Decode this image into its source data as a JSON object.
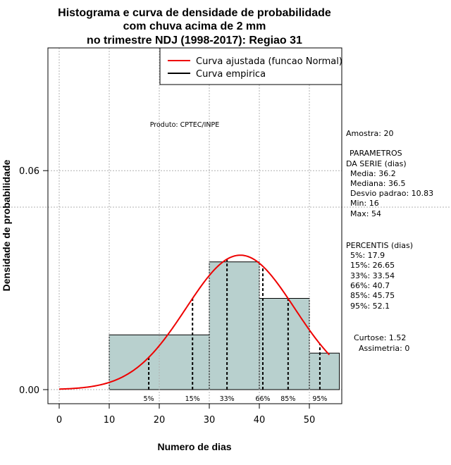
{
  "title": {
    "line1": "Histograma e curva de densidade de probabilidade",
    "line2": "com chuva acima de 2 mm",
    "line3": "no trimestre NDJ (1998-2017): Regiao 31"
  },
  "product_label": "Produto: CPTEC/INPE",
  "legend": {
    "fit_label": "Curva ajustada (funcao Normal)",
    "empirical_label": "Curva empirica"
  },
  "stats": {
    "amostra": "Amostra: 20",
    "param_header1": "PARAMETROS",
    "param_header2": "DA SERIE (dias)",
    "media": "Media: 36.2",
    "mediana": "Mediana: 36.5",
    "desvio": "Desvio padrao: 10.83",
    "min": "Min: 16",
    "max": "Max: 54",
    "perc_header": "PERCENTIS (dias)",
    "p5": "5%: 17.9",
    "p15": "15%: 26.65",
    "p33": "33%: 33.54",
    "p66": "66%: 40.7",
    "p85": "85%: 45.75",
    "p95": "95%: 52.1",
    "curtose": "Curtose: 1.52",
    "assimetria": "Assimetria: 0"
  },
  "chart_data": {
    "type": "bar",
    "title": "Histograma e curva de densidade de probabilidade com chuva acima de 2 mm no trimestre NDJ (1998-2017): Regiao 31",
    "xlabel": "Numero de dias",
    "ylabel": "Densidade de probabilidade",
    "xlim": [
      -2.5,
      56.5
    ],
    "ylim": [
      -0.004,
      0.09
    ],
    "x_ticks": [
      0,
      10,
      20,
      30,
      40,
      50
    ],
    "y_ticks": [
      0.0,
      0.06
    ],
    "y_tick_labels": [
      "0.00",
      "0.06"
    ],
    "grid": true,
    "extra_hgrid": 0.05,
    "bins": [
      {
        "start": 10,
        "end": 30,
        "density": 0.015
      },
      {
        "start": 30,
        "end": 40,
        "density": 0.035
      },
      {
        "start": 40,
        "end": 50,
        "density": 0.025
      },
      {
        "start": 50,
        "end": 56,
        "density": 0.01
      }
    ],
    "normal_fit": {
      "mean": 36.2,
      "sd": 10.83,
      "x_start": 0,
      "x_end": 54
    },
    "percentiles": [
      {
        "label": "5%",
        "value": 17.9
      },
      {
        "label": "15%",
        "value": 26.65
      },
      {
        "label": "33%",
        "value": 33.54
      },
      {
        "label": "66%",
        "value": 40.7
      },
      {
        "label": "85%",
        "value": 45.75
      },
      {
        "label": "95%",
        "value": 52.1
      }
    ],
    "colors": {
      "bar_fill": "#b8d0ce",
      "fit_curve": "#ee0000",
      "empirical": "#000000",
      "grid": "#b0b0b0"
    }
  }
}
